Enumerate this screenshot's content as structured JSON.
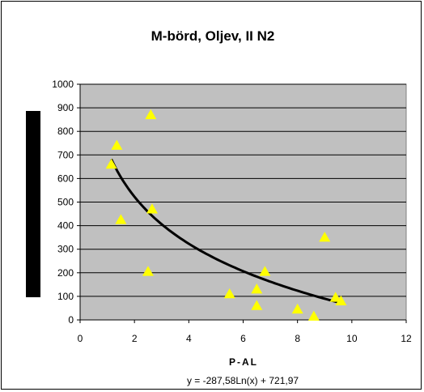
{
  "chart_data": {
    "type": "scatter",
    "title": "M-börd, Oljev, II N2",
    "xlabel": "P-AL",
    "ylabel": "",
    "xlim": [
      0,
      12
    ],
    "ylim": [
      0,
      1000
    ],
    "x_ticks": [
      "0",
      "2",
      "4",
      "6",
      "8",
      "10",
      "12"
    ],
    "y_ticks": [
      "0",
      "100",
      "200",
      "300",
      "400",
      "500",
      "600",
      "700",
      "800",
      "900",
      "1000"
    ],
    "grid": true,
    "legend": "none",
    "plot_background": "#c0c0c0",
    "points": [
      {
        "x": 1.15,
        "y": 660
      },
      {
        "x": 1.35,
        "y": 740
      },
      {
        "x": 1.5,
        "y": 425
      },
      {
        "x": 2.5,
        "y": 205
      },
      {
        "x": 2.6,
        "y": 870
      },
      {
        "x": 2.65,
        "y": 470
      },
      {
        "x": 5.5,
        "y": 110
      },
      {
        "x": 6.5,
        "y": 130
      },
      {
        "x": 6.5,
        "y": 60
      },
      {
        "x": 6.8,
        "y": 205
      },
      {
        "x": 8.0,
        "y": 45
      },
      {
        "x": 8.6,
        "y": 15
      },
      {
        "x": 9.0,
        "y": 350
      },
      {
        "x": 9.4,
        "y": 95
      },
      {
        "x": 9.6,
        "y": 80
      }
    ],
    "point_color": "#ffff00",
    "trendline": {
      "type": "logarithmic",
      "a": -287.58,
      "b": 721.97,
      "x_range": [
        1.15,
        9.6
      ],
      "color": "#000000",
      "equation_text": "y = -287,58Ln(x) + 721,97"
    },
    "left_bar_color": "#000000"
  }
}
